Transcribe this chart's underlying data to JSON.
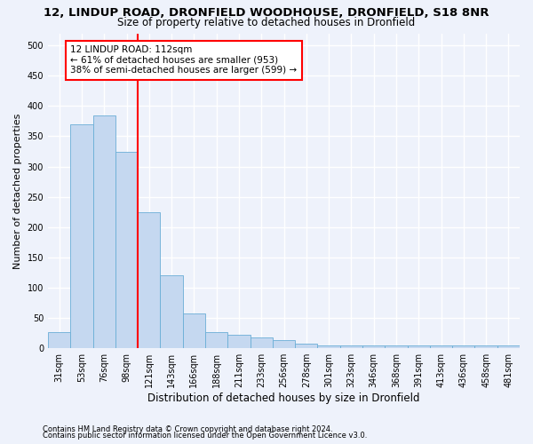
{
  "title": "12, LINDUP ROAD, DRONFIELD WOODHOUSE, DRONFIELD, S18 8NR",
  "subtitle": "Size of property relative to detached houses in Dronfield",
  "xlabel": "Distribution of detached houses by size in Dronfield",
  "ylabel": "Number of detached properties",
  "bar_values": [
    27,
    370,
    385,
    325,
    225,
    120,
    58,
    27,
    22,
    18,
    13,
    7,
    5,
    5,
    5,
    5,
    5,
    5,
    5,
    5,
    5
  ],
  "categories": [
    "31sqm",
    "53sqm",
    "76sqm",
    "98sqm",
    "121sqm",
    "143sqm",
    "166sqm",
    "188sqm",
    "211sqm",
    "233sqm",
    "256sqm",
    "278sqm",
    "301sqm",
    "323sqm",
    "346sqm",
    "368sqm",
    "391sqm",
    "413sqm",
    "436sqm",
    "458sqm",
    "481sqm"
  ],
  "bar_color": "#c5d8f0",
  "bar_edgecolor": "#6aaed6",
  "vline_color": "red",
  "vline_position": 3.5,
  "annotation_text": "12 LINDUP ROAD: 112sqm\n← 61% of detached houses are smaller (953)\n38% of semi-detached houses are larger (599) →",
  "annotation_box_edgecolor": "red",
  "annotation_box_facecolor": "white",
  "ylim": [
    0,
    520
  ],
  "yticks": [
    0,
    50,
    100,
    150,
    200,
    250,
    300,
    350,
    400,
    450,
    500
  ],
  "footnote1": "Contains HM Land Registry data © Crown copyright and database right 2024.",
  "footnote2": "Contains public sector information licensed under the Open Government Licence v3.0.",
  "bg_color": "#eef2fb",
  "grid_color": "#ffffff",
  "title_fontsize": 9.5,
  "subtitle_fontsize": 8.5,
  "ylabel_fontsize": 8,
  "xlabel_fontsize": 8.5,
  "tick_fontsize": 7,
  "annot_fontsize": 7.5,
  "footnote_fontsize": 6
}
